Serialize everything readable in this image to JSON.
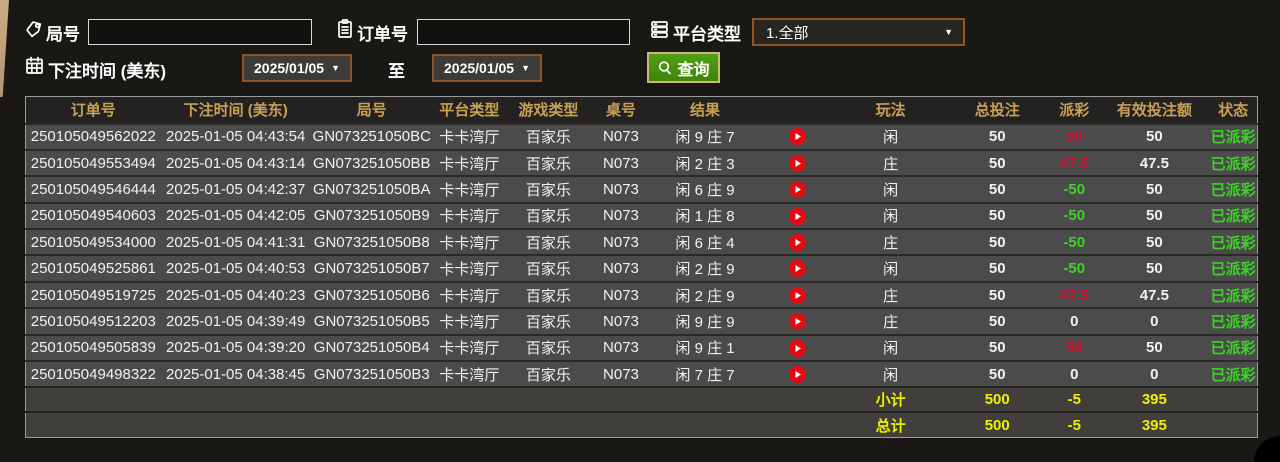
{
  "filters": {
    "game_no": {
      "label": "局号",
      "value": ""
    },
    "order_no": {
      "label": "订单号",
      "value": ""
    },
    "platform": {
      "label": "平台类型",
      "selected": "1.全部"
    },
    "bet_time": {
      "label": "下注时间 (美东)",
      "from": "2025/01/05",
      "to": "2025/01/05",
      "to_word": "至"
    },
    "search_button": "查询"
  },
  "colors": {
    "header_gold": "#c8a156",
    "payout_positive_red": "#d00d2c",
    "payout_negative_green": "#3dd327",
    "status_green": "#3dd327",
    "total_yellow": "#eff000",
    "button_green": "#47930f",
    "picker_border_brown": "#8a5420"
  },
  "table": {
    "headers": [
      "订单号",
      "下注时间 (美东)",
      "局号",
      "平台类型",
      "游戏类型",
      "桌号",
      "结果",
      "",
      "玩法",
      "总投注",
      "派彩",
      "有效投注额",
      "状态"
    ],
    "rows": [
      {
        "order_no": "250105049562022",
        "bet_time": "2025-01-05 04:43:54",
        "game_no": "GN073251050BC",
        "platform": "卡卡湾厅",
        "game_type": "百家乐",
        "table_no": "N073",
        "result": "闲 9 庄 7",
        "play": "闲",
        "total_bet": "50",
        "payout": "50",
        "valid_bet": "50",
        "status": "已派彩"
      },
      {
        "order_no": "250105049553494",
        "bet_time": "2025-01-05 04:43:14",
        "game_no": "GN073251050BB",
        "platform": "卡卡湾厅",
        "game_type": "百家乐",
        "table_no": "N073",
        "result": "闲 2 庄 3",
        "play": "庄",
        "total_bet": "50",
        "payout": "47.5",
        "valid_bet": "47.5",
        "status": "已派彩"
      },
      {
        "order_no": "250105049546444",
        "bet_time": "2025-01-05 04:42:37",
        "game_no": "GN073251050BA",
        "platform": "卡卡湾厅",
        "game_type": "百家乐",
        "table_no": "N073",
        "result": "闲 6 庄 9",
        "play": "闲",
        "total_bet": "50",
        "payout": "-50",
        "valid_bet": "50",
        "status": "已派彩"
      },
      {
        "order_no": "250105049540603",
        "bet_time": "2025-01-05 04:42:05",
        "game_no": "GN073251050B9",
        "platform": "卡卡湾厅",
        "game_type": "百家乐",
        "table_no": "N073",
        "result": "闲 1 庄 8",
        "play": "闲",
        "total_bet": "50",
        "payout": "-50",
        "valid_bet": "50",
        "status": "已派彩"
      },
      {
        "order_no": "250105049534000",
        "bet_time": "2025-01-05 04:41:31",
        "game_no": "GN073251050B8",
        "platform": "卡卡湾厅",
        "game_type": "百家乐",
        "table_no": "N073",
        "result": "闲 6 庄 4",
        "play": "庄",
        "total_bet": "50",
        "payout": "-50",
        "valid_bet": "50",
        "status": "已派彩"
      },
      {
        "order_no": "250105049525861",
        "bet_time": "2025-01-05 04:40:53",
        "game_no": "GN073251050B7",
        "platform": "卡卡湾厅",
        "game_type": "百家乐",
        "table_no": "N073",
        "result": "闲 2 庄 9",
        "play": "闲",
        "total_bet": "50",
        "payout": "-50",
        "valid_bet": "50",
        "status": "已派彩"
      },
      {
        "order_no": "250105049519725",
        "bet_time": "2025-01-05 04:40:23",
        "game_no": "GN073251050B6",
        "platform": "卡卡湾厅",
        "game_type": "百家乐",
        "table_no": "N073",
        "result": "闲 2 庄 9",
        "play": "庄",
        "total_bet": "50",
        "payout": "47.5",
        "valid_bet": "47.5",
        "status": "已派彩"
      },
      {
        "order_no": "250105049512203",
        "bet_time": "2025-01-05 04:39:49",
        "game_no": "GN073251050B5",
        "platform": "卡卡湾厅",
        "game_type": "百家乐",
        "table_no": "N073",
        "result": "闲 9 庄 9",
        "play": "庄",
        "total_bet": "50",
        "payout": "0",
        "valid_bet": "0",
        "status": "已派彩"
      },
      {
        "order_no": "250105049505839",
        "bet_time": "2025-01-05 04:39:20",
        "game_no": "GN073251050B4",
        "platform": "卡卡湾厅",
        "game_type": "百家乐",
        "table_no": "N073",
        "result": "闲 9 庄 1",
        "play": "闲",
        "total_bet": "50",
        "payout": "50",
        "valid_bet": "50",
        "status": "已派彩"
      },
      {
        "order_no": "250105049498322",
        "bet_time": "2025-01-05 04:38:45",
        "game_no": "GN073251050B3",
        "platform": "卡卡湾厅",
        "game_type": "百家乐",
        "table_no": "N073",
        "result": "闲 7 庄 7",
        "play": "闲",
        "total_bet": "50",
        "payout": "0",
        "valid_bet": "0",
        "status": "已派彩"
      }
    ],
    "subtotal": {
      "label": "小计",
      "total_bet": "500",
      "payout": "-5",
      "valid_bet": "395"
    },
    "grand_total": {
      "label": "总计",
      "total_bet": "500",
      "payout": "-5",
      "valid_bet": "395"
    }
  }
}
